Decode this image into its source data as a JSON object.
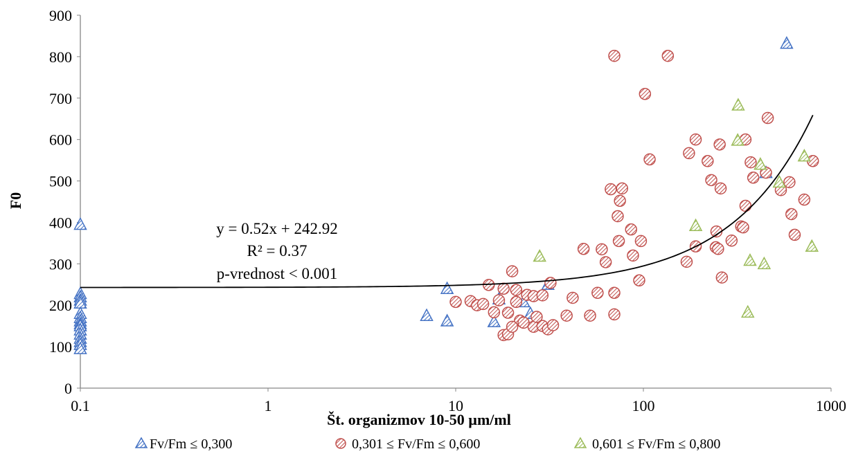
{
  "chart_data": {
    "type": "scatter",
    "xlabel": "Št. organizmov 10-50 µm/ml",
    "ylabel": "F0",
    "xscale": "log",
    "xlim": [
      0.1,
      1000
    ],
    "ylim": [
      0,
      900
    ],
    "xticks": [
      {
        "value": 0.1,
        "label": "0.1"
      },
      {
        "value": 1,
        "label": "1"
      },
      {
        "value": 10,
        "label": "10"
      },
      {
        "value": 100,
        "label": "100"
      },
      {
        "value": 1000,
        "label": "1000"
      }
    ],
    "yticks": [
      0,
      100,
      200,
      300,
      400,
      500,
      600,
      700,
      800,
      900
    ],
    "grid": false,
    "legend_position": "bottom",
    "trendline": {
      "slope": 0.52,
      "intercept": 242.92,
      "x_range": [
        0.1,
        800
      ],
      "color": "#000000",
      "annotation": [
        "y = 0.52x + 242.92",
        "R² = 0.37",
        "p-vrednost < 0.001"
      ]
    },
    "series": [
      {
        "name": "Fv/Fm ≤ 0,300",
        "marker": "triangle",
        "color": "#4472c4",
        "points": [
          [
            0.1,
            395
          ],
          [
            0.1,
            228
          ],
          [
            0.1,
            220
          ],
          [
            0.1,
            212
          ],
          [
            0.1,
            205
          ],
          [
            0.1,
            180
          ],
          [
            0.1,
            170
          ],
          [
            0.1,
            162
          ],
          [
            0.1,
            155
          ],
          [
            0.1,
            150
          ],
          [
            0.1,
            140
          ],
          [
            0.1,
            130
          ],
          [
            0.1,
            120
          ],
          [
            0.1,
            112
          ],
          [
            0.1,
            105
          ],
          [
            0.1,
            95
          ],
          [
            7,
            175
          ],
          [
            9,
            240
          ],
          [
            9,
            162
          ],
          [
            16,
            160
          ],
          [
            17,
            215
          ],
          [
            23,
            208
          ],
          [
            25,
            180
          ],
          [
            31,
            250
          ],
          [
            580,
            832
          ],
          [
            450,
            520
          ]
        ]
      },
      {
        "name": "0,301 ≤ Fv/Fm ≤ 0,600",
        "marker": "circle",
        "color": "#c0504d",
        "points": [
          [
            70,
            802
          ],
          [
            135,
            802
          ],
          [
            102,
            710
          ],
          [
            108,
            552
          ],
          [
            190,
            600
          ],
          [
            175,
            567
          ],
          [
            220,
            548
          ],
          [
            255,
            588
          ],
          [
            350,
            600
          ],
          [
            460,
            652
          ],
          [
            373,
            545
          ],
          [
            385,
            508
          ],
          [
            450,
            520
          ],
          [
            800,
            548
          ],
          [
            600,
            497
          ],
          [
            540,
            478
          ],
          [
            230,
            502
          ],
          [
            258,
            482
          ],
          [
            350,
            440
          ],
          [
            720,
            455
          ],
          [
            615,
            420
          ],
          [
            640,
            370
          ],
          [
            67,
            480
          ],
          [
            77,
            482
          ],
          [
            75,
            452
          ],
          [
            73,
            415
          ],
          [
            86,
            383
          ],
          [
            97,
            355
          ],
          [
            74,
            355
          ],
          [
            48,
            336
          ],
          [
            60,
            335
          ],
          [
            63,
            304
          ],
          [
            88,
            320
          ],
          [
            190,
            342
          ],
          [
            245,
            378
          ],
          [
            243,
            340
          ],
          [
            250,
            336
          ],
          [
            295,
            356
          ],
          [
            332,
            390
          ],
          [
            340,
            388
          ],
          [
            170,
            305
          ],
          [
            95,
            260
          ],
          [
            262,
            267
          ],
          [
            20,
            282
          ],
          [
            15,
            249
          ],
          [
            18,
            240
          ],
          [
            21,
            237
          ],
          [
            32,
            254
          ],
          [
            17,
            212
          ],
          [
            21,
            208
          ],
          [
            10,
            208
          ],
          [
            12,
            210
          ],
          [
            13,
            200
          ],
          [
            14,
            203
          ],
          [
            16,
            183
          ],
          [
            19,
            182
          ],
          [
            24,
            225
          ],
          [
            26,
            222
          ],
          [
            29,
            224
          ],
          [
            57,
            230
          ],
          [
            70,
            230
          ],
          [
            42,
            218
          ],
          [
            22,
            163
          ],
          [
            23,
            158
          ],
          [
            26,
            148
          ],
          [
            27,
            172
          ],
          [
            29,
            150
          ],
          [
            31,
            142
          ],
          [
            33,
            152
          ],
          [
            39,
            175
          ],
          [
            52,
            175
          ],
          [
            70,
            178
          ],
          [
            18,
            128
          ],
          [
            19,
            130
          ],
          [
            20,
            148
          ]
        ]
      },
      {
        "name": "0,601 ≤ Fv/Fm ≤ 0,800",
        "marker": "triangle",
        "color": "#9bbb59",
        "points": [
          [
            320,
            683
          ],
          [
            318,
            598
          ],
          [
            420,
            540
          ],
          [
            720,
            560
          ],
          [
            530,
            497
          ],
          [
            190,
            392
          ],
          [
            370,
            308
          ],
          [
            440,
            300
          ],
          [
            790,
            342
          ],
          [
            360,
            183
          ],
          [
            28,
            318
          ]
        ]
      }
    ]
  }
}
